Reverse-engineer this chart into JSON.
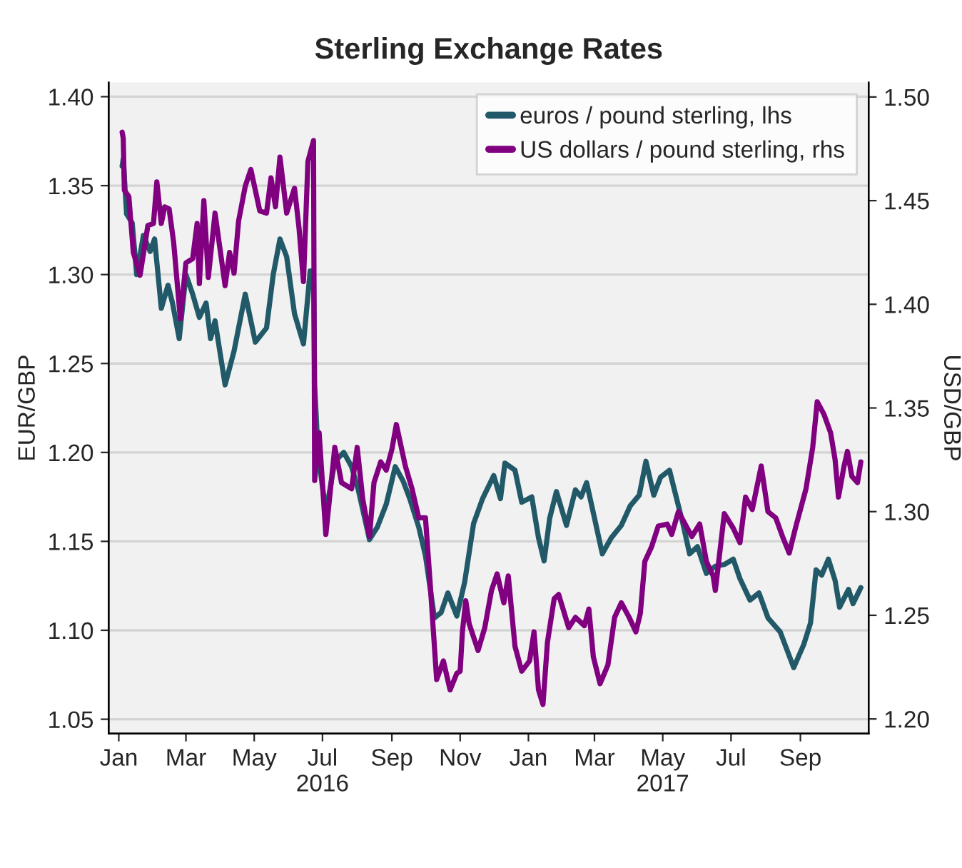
{
  "chart_data": {
    "type": "line",
    "title": "Sterling Exchange Rates",
    "ylabel": "EUR/GBP",
    "y2label": "USD/GBP",
    "xlim": [
      "2015-12-23",
      "2017-11-01"
    ],
    "xticks": [
      {
        "value": "2016-01-01",
        "label": "Jan"
      },
      {
        "value": "2016-03-01",
        "label": "Mar"
      },
      {
        "value": "2016-05-01",
        "label": "May"
      },
      {
        "value": "2016-07-01",
        "label": "Jul\n2016"
      },
      {
        "value": "2016-09-01",
        "label": "Sep"
      },
      {
        "value": "2016-11-01",
        "label": "Nov"
      },
      {
        "value": "2017-01-01",
        "label": "Jan"
      },
      {
        "value": "2017-03-01",
        "label": "Mar"
      },
      {
        "value": "2017-05-01",
        "label": "May\n2017"
      },
      {
        "value": "2017-07-01",
        "label": "Jul"
      },
      {
        "value": "2017-09-01",
        "label": "Sep"
      }
    ],
    "ylim": [
      1.042,
      1.408
    ],
    "yticks": [
      1.05,
      {
        "value": 1.1,
        "label": "1.10"
      },
      1.15,
      {
        "value": 1.2,
        "label": "1.20"
      },
      1.25,
      {
        "value": 1.3,
        "label": "1.30"
      },
      1.35,
      {
        "value": 1.4,
        "label": "1.40"
      }
    ],
    "y2lim": [
      1.193,
      1.507
    ],
    "y2ticks": [
      {
        "value": 1.2,
        "label": "1.20"
      },
      1.25,
      {
        "value": 1.3,
        "label": "1.30"
      },
      1.35,
      {
        "value": 1.4,
        "label": "1.40"
      },
      1.45,
      {
        "value": 1.5,
        "label": "1.50"
      }
    ],
    "grid": "y",
    "legend": "top right",
    "series": [
      {
        "name": "euros / pound sterling, lhs",
        "color": "#215968",
        "x": [
          "2016-01-04",
          "2016-01-05",
          "2016-01-08",
          "2016-01-13",
          "2016-01-17",
          "2016-01-23",
          "2016-01-29",
          "2016-02-02",
          "2016-02-08",
          "2016-02-14",
          "2016-02-18",
          "2016-02-24",
          "2016-03-01",
          "2016-03-07",
          "2016-03-13",
          "2016-03-19",
          "2016-03-23",
          "2016-03-27",
          "2016-04-05",
          "2016-04-13",
          "2016-04-23",
          "2016-05-02",
          "2016-05-12",
          "2016-05-18",
          "2016-05-24",
          "2016-05-30",
          "2016-06-06",
          "2016-06-14",
          "2016-06-20",
          "2016-06-23",
          "2016-06-24",
          "2016-06-27",
          "2016-07-04",
          "2016-07-12",
          "2016-07-20",
          "2016-07-27",
          "2016-08-02",
          "2016-08-12",
          "2016-08-19",
          "2016-08-27",
          "2016-09-04",
          "2016-09-11",
          "2016-09-17",
          "2016-09-25",
          "2016-10-01",
          "2016-10-09",
          "2016-10-15",
          "2016-10-21",
          "2016-10-29",
          "2016-11-05",
          "2016-11-13",
          "2016-11-21",
          "2016-12-01",
          "2016-12-07",
          "2016-12-11",
          "2016-12-20",
          "2016-12-26",
          "2017-01-04",
          "2017-01-10",
          "2017-01-15",
          "2017-01-20",
          "2017-01-26",
          "2017-02-04",
          "2017-02-12",
          "2017-02-17",
          "2017-02-22",
          "2017-02-28",
          "2017-03-08",
          "2017-03-16",
          "2017-03-25",
          "2017-04-02",
          "2017-04-10",
          "2017-04-16",
          "2017-04-23",
          "2017-04-29",
          "2017-05-07",
          "2017-05-13",
          "2017-05-19",
          "2017-05-25",
          "2017-06-01",
          "2017-06-09",
          "2017-06-17",
          "2017-06-25",
          "2017-07-03",
          "2017-07-09",
          "2017-07-18",
          "2017-07-26",
          "2017-08-03",
          "2017-08-14",
          "2017-08-26",
          "2017-09-04",
          "2017-09-10",
          "2017-09-15",
          "2017-09-20",
          "2017-09-26",
          "2017-10-02",
          "2017-10-06",
          "2017-10-14",
          "2017-10-18",
          "2017-10-25"
        ],
        "values": [
          1.361,
          1.365,
          1.334,
          1.329,
          1.3,
          1.322,
          1.313,
          1.32,
          1.281,
          1.294,
          1.284,
          1.264,
          1.3,
          1.289,
          1.276,
          1.284,
          1.264,
          1.274,
          1.238,
          1.257,
          1.289,
          1.262,
          1.27,
          1.3,
          1.32,
          1.31,
          1.278,
          1.261,
          1.302,
          1.302,
          1.238,
          1.2,
          1.166,
          1.195,
          1.2,
          1.192,
          1.179,
          1.151,
          1.158,
          1.171,
          1.192,
          1.184,
          1.174,
          1.158,
          1.142,
          1.107,
          1.11,
          1.121,
          1.108,
          1.127,
          1.16,
          1.174,
          1.187,
          1.174,
          1.194,
          1.19,
          1.172,
          1.175,
          1.152,
          1.139,
          1.163,
          1.178,
          1.159,
          1.179,
          1.175,
          1.183,
          1.166,
          1.143,
          1.152,
          1.159,
          1.17,
          1.176,
          1.195,
          1.176,
          1.186,
          1.19,
          1.175,
          1.16,
          1.143,
          1.147,
          1.132,
          1.136,
          1.137,
          1.14,
          1.129,
          1.117,
          1.121,
          1.107,
          1.099,
          1.079,
          1.092,
          1.104,
          1.134,
          1.131,
          1.14,
          1.128,
          1.113,
          1.123,
          1.115,
          1.124
        ]
      },
      {
        "name": "US dollars / pound sterling, rhs",
        "color": "#800080",
        "axis": "y2",
        "x": [
          "2016-01-04",
          "2016-01-05",
          "2016-01-06",
          "2016-01-10",
          "2016-01-14",
          "2016-01-20",
          "2016-01-27",
          "2016-02-01",
          "2016-02-04",
          "2016-02-08",
          "2016-02-11",
          "2016-02-15",
          "2016-02-19",
          "2016-02-25",
          "2016-03-01",
          "2016-03-07",
          "2016-03-11",
          "2016-03-13",
          "2016-03-17",
          "2016-03-21",
          "2016-03-27",
          "2016-04-05",
          "2016-04-09",
          "2016-04-13",
          "2016-04-17",
          "2016-04-23",
          "2016-04-28",
          "2016-05-06",
          "2016-05-12",
          "2016-05-16",
          "2016-05-20",
          "2016-05-24",
          "2016-05-30",
          "2016-06-06",
          "2016-06-10",
          "2016-06-14",
          "2016-06-18",
          "2016-06-23",
          "2016-06-24",
          "2016-06-28",
          "2016-07-04",
          "2016-07-12",
          "2016-07-18",
          "2016-07-27",
          "2016-08-01",
          "2016-08-06",
          "2016-08-12",
          "2016-08-16",
          "2016-08-22",
          "2016-08-27",
          "2016-09-01",
          "2016-09-05",
          "2016-09-13",
          "2016-09-19",
          "2016-09-25",
          "2016-10-01",
          "2016-10-05",
          "2016-10-11",
          "2016-10-17",
          "2016-10-23",
          "2016-10-29",
          "2016-11-01",
          "2016-11-03",
          "2016-11-06",
          "2016-11-09",
          "2016-11-17",
          "2016-11-23",
          "2016-11-29",
          "2016-12-04",
          "2016-12-10",
          "2016-12-14",
          "2016-12-20",
          "2016-12-26",
          "2017-01-02",
          "2017-01-06",
          "2017-01-10",
          "2017-01-14",
          "2017-01-18",
          "2017-01-24",
          "2017-01-28",
          "2017-02-06",
          "2017-02-12",
          "2017-02-20",
          "2017-02-24",
          "2017-02-28",
          "2017-03-06",
          "2017-03-13",
          "2017-03-19",
          "2017-03-25",
          "2017-04-01",
          "2017-04-07",
          "2017-04-11",
          "2017-04-15",
          "2017-04-21",
          "2017-04-27",
          "2017-05-05",
          "2017-05-09",
          "2017-05-15",
          "2017-05-21",
          "2017-05-27",
          "2017-06-03",
          "2017-06-09",
          "2017-06-15",
          "2017-06-17",
          "2017-06-25",
          "2017-07-03",
          "2017-07-09",
          "2017-07-14",
          "2017-07-20",
          "2017-07-28",
          "2017-08-03",
          "2017-08-10",
          "2017-08-16",
          "2017-08-22",
          "2017-08-28",
          "2017-09-06",
          "2017-09-12",
          "2017-09-16",
          "2017-09-22",
          "2017-09-28",
          "2017-10-02",
          "2017-10-05",
          "2017-10-10",
          "2017-10-13",
          "2017-10-17",
          "2017-10-22",
          "2017-10-25"
        ],
        "values": [
          1.483,
          1.48,
          1.455,
          1.452,
          1.425,
          1.414,
          1.438,
          1.439,
          1.459,
          1.439,
          1.447,
          1.446,
          1.43,
          1.393,
          1.42,
          1.422,
          1.439,
          1.41,
          1.45,
          1.413,
          1.444,
          1.409,
          1.425,
          1.415,
          1.44,
          1.457,
          1.465,
          1.445,
          1.444,
          1.461,
          1.447,
          1.471,
          1.444,
          1.456,
          1.437,
          1.411,
          1.469,
          1.479,
          1.315,
          1.338,
          1.289,
          1.331,
          1.314,
          1.311,
          1.331,
          1.306,
          1.288,
          1.314,
          1.324,
          1.32,
          1.33,
          1.342,
          1.322,
          1.311,
          1.297,
          1.297,
          1.267,
          1.219,
          1.228,
          1.214,
          1.222,
          1.223,
          1.242,
          1.257,
          1.246,
          1.233,
          1.244,
          1.262,
          1.27,
          1.256,
          1.269,
          1.235,
          1.223,
          1.228,
          1.242,
          1.214,
          1.207,
          1.237,
          1.258,
          1.26,
          1.244,
          1.249,
          1.245,
          1.253,
          1.23,
          1.217,
          1.226,
          1.249,
          1.256,
          1.249,
          1.242,
          1.251,
          1.276,
          1.283,
          1.293,
          1.294,
          1.289,
          1.3,
          1.294,
          1.288,
          1.294,
          1.276,
          1.269,
          1.262,
          1.299,
          1.292,
          1.285,
          1.307,
          1.301,
          1.322,
          1.3,
          1.297,
          1.288,
          1.28,
          1.293,
          1.311,
          1.331,
          1.353,
          1.347,
          1.338,
          1.325,
          1.307,
          1.322,
          1.329,
          1.317,
          1.314,
          1.324
        ]
      }
    ]
  }
}
